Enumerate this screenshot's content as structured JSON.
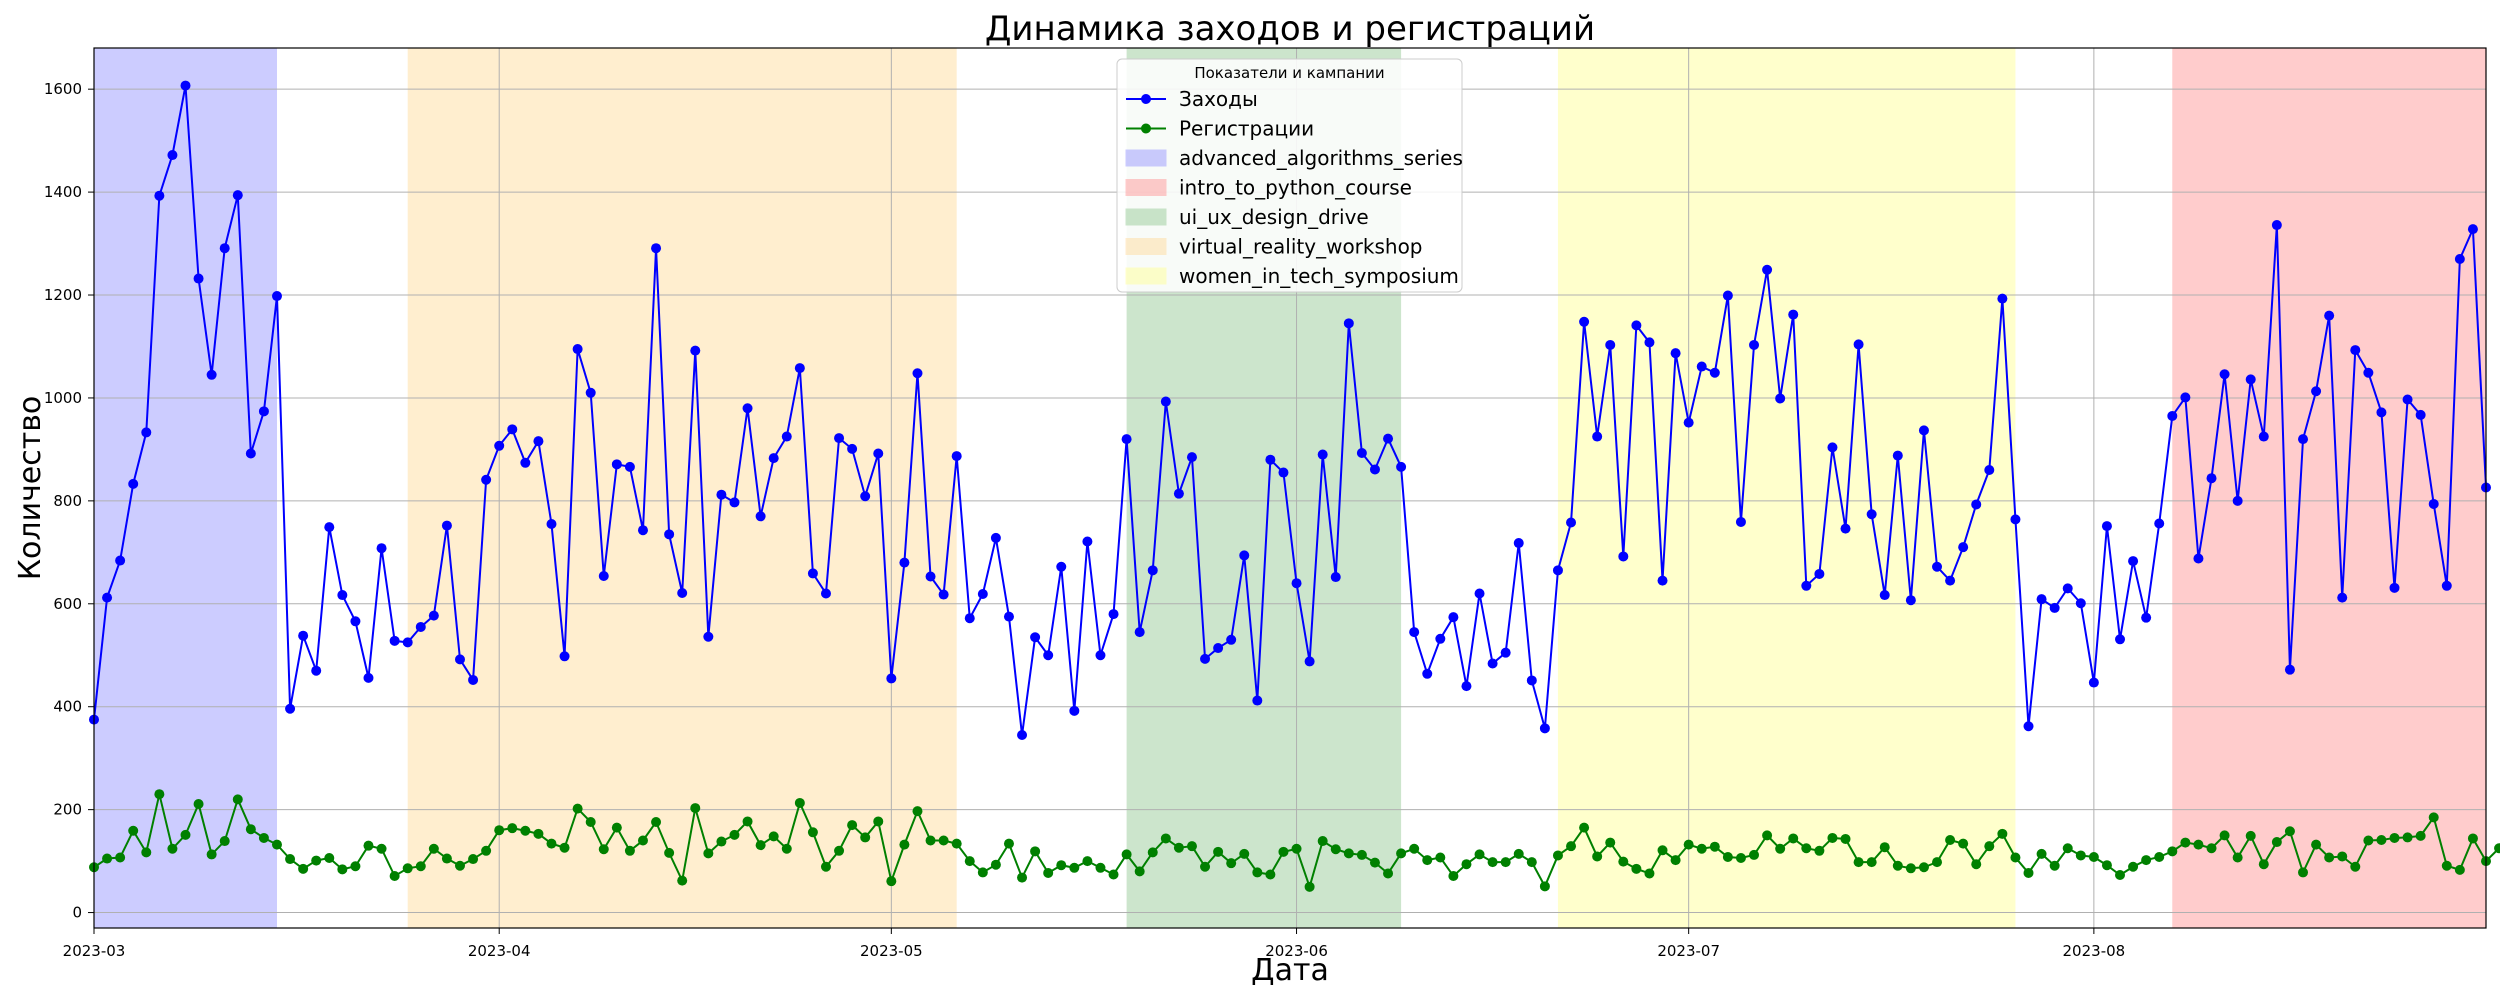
{
  "chart_data": {
    "type": "line",
    "title": "Динамика заходов и регистраций",
    "xlabel": "Дата",
    "ylabel": "Количество",
    "x_range": [
      "2023-03-01",
      "2023-08-31"
    ],
    "ylim": [
      -30,
      1680
    ],
    "x_ticks": [
      "2023-03",
      "2023-04",
      "2023-05",
      "2023-06",
      "2023-07",
      "2023-08"
    ],
    "y_ticks": [
      "0",
      "200",
      "400",
      "600",
      "800",
      "1000",
      "1200",
      "1400",
      "1600"
    ],
    "grid": true,
    "legend": {
      "title": "Показатели и кампании",
      "placement": "top-center"
    },
    "colors": {
      "visits": "#0000ff",
      "registrations": "#008000"
    },
    "campaigns": [
      {
        "name": "advanced_algorithms_series",
        "start": "2023-03-01",
        "end": "2023-03-15",
        "color": "#9999ff"
      },
      {
        "name": "intro_to_python_course",
        "start": "2023-08-07",
        "end": "2023-08-31",
        "color": "#ff9999"
      },
      {
        "name": "ui_ux_design_drive",
        "start": "2023-05-19",
        "end": "2023-06-09",
        "color": "#99cc99"
      },
      {
        "name": "virtual_reality_workshop",
        "start": "2023-03-25",
        "end": "2023-05-06",
        "color": "#ffdda0"
      },
      {
        "name": "women_in_tech_symposium",
        "start": "2023-06-21",
        "end": "2023-07-26",
        "color": "#ffff9a"
      }
    ],
    "series": [
      {
        "name": "Заходы",
        "start_date": "2023-03-01",
        "values": [
          375,
          612,
          684,
          833,
          933,
          1393,
          1472,
          1607,
          1232,
          1045,
          1291,
          1394,
          892,
          974,
          1198,
          396,
          538,
          470,
          749,
          617,
          566,
          456,
          708,
          528,
          525,
          555,
          577,
          752,
          492,
          452,
          841,
          907,
          939,
          874,
          916,
          755,
          498,
          1095,
          1010,
          654,
          871,
          866,
          743,
          1291,
          735,
          621,
          1092,
          536,
          812,
          797,
          980,
          770,
          883,
          925,
          1058,
          659,
          620,
          922,
          901,
          809,
          892,
          455,
          680,
          1048,
          653,
          618,
          887,
          572,
          619,
          728,
          575,
          345,
          535,
          500,
          672,
          392,
          721,
          500,
          580,
          920,
          545,
          665,
          993,
          814,
          885,
          493,
          514,
          530,
          694,
          412,
          880,
          855,
          640,
          488,
          890,
          652,
          1145,
          893,
          861,
          921,
          866,
          545,
          464,
          532,
          574,
          440,
          620,
          484,
          505,
          718,
          451,
          358,
          665,
          758,
          1148,
          925,
          1103,
          692,
          1141,
          1108,
          645,
          1087,
          952,
          1061,
          1049,
          1199,
          759,
          1103,
          1249,
          999,
          1162,
          635,
          658,
          904,
          746,
          1104,
          774,
          617,
          888,
          607,
          937,
          672,
          645,
          710,
          793,
          860,
          1193,
          764,
          362,
          609,
          592,
          630,
          601,
          447,
          751,
          531,
          683,
          573,
          756,
          965,
          1001,
          688,
          844,
          1046,
          800,
          1036,
          925,
          1336,
          472,
          920,
          1013,
          1160,
          612,
          1093,
          1049,
          972,
          631,
          997,
          967,
          794,
          635,
          1270,
          1328,
          826
        ]
      },
      {
        "name": "Регистрации",
        "start_date": "2023-03-01",
        "values": [
          88,
          105,
          107,
          159,
          117,
          230,
          124,
          151,
          211,
          113,
          139,
          220,
          162,
          145,
          132,
          104,
          85,
          101,
          106,
          84,
          90,
          130,
          124,
          71,
          86,
          90,
          124,
          105,
          91,
          104,
          120,
          160,
          164,
          159,
          153,
          134,
          126,
          202,
          176,
          123,
          165,
          120,
          140,
          176,
          116,
          62,
          203,
          115,
          138,
          151,
          177,
          131,
          148,
          124,
          213,
          156,
          89,
          120,
          170,
          146,
          177,
          61,
          132,
          197,
          140,
          140,
          134,
          100,
          78,
          93,
          134,
          68,
          119,
          77,
          92,
          87,
          100,
          87,
          74,
          113,
          80,
          117,
          144,
          126,
          129,
          89,
          118,
          96,
          114,
          78,
          74,
          118,
          124,
          50,
          139,
          123,
          115,
          112,
          97,
          76,
          115,
          124,
          102,
          107,
          71,
          94,
          113,
          98,
          98,
          114,
          98,
          51,
          111,
          129,
          165,
          109,
          136,
          99,
          85,
          76,
          121,
          102,
          132,
          124,
          128,
          108,
          106,
          112,
          150,
          124,
          144,
          125,
          120,
          145,
          143,
          98,
          98,
          127,
          91,
          86,
          88,
          98,
          141,
          134,
          94,
          129,
          153,
          107,
          77,
          114,
          91,
          125,
          111,
          108,
          92,
          73,
          89,
          102,
          108,
          119,
          136,
          132,
          125,
          150,
          107,
          149,
          94,
          137,
          158,
          78,
          132,
          107,
          109,
          89,
          140,
          141,
          145,
          146,
          149,
          185,
          91,
          83,
          144,
          100,
          125
        ]
      }
    ]
  }
}
